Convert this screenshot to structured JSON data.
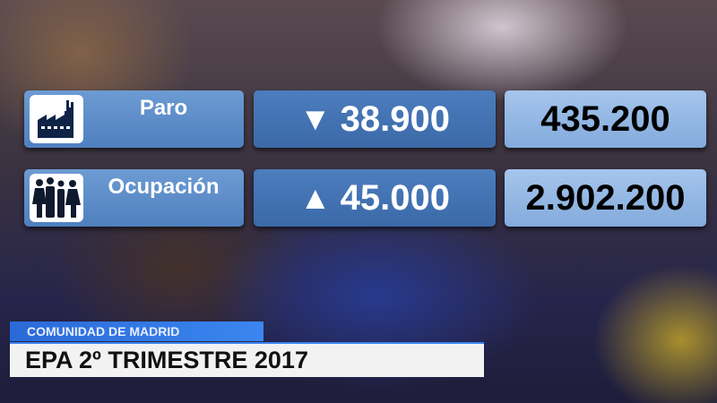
{
  "rows": [
    {
      "label": "Paro",
      "icon": "factory-icon",
      "direction": "down",
      "change": "38.900",
      "total": "435.200"
    },
    {
      "label": "Ocupación",
      "icon": "family-icon",
      "direction": "up",
      "change": "45.000",
      "total": "2.902.200"
    }
  ],
  "lower_third": {
    "region": "COMUNIDAD DE MADRID",
    "title": "EPA 2º TRIMESTRE 2017"
  },
  "colors": {
    "label_box": "#5d8cc9",
    "change_box": "#4473b3",
    "total_box": "#94b8e4",
    "region_bar": "#3378e4"
  }
}
